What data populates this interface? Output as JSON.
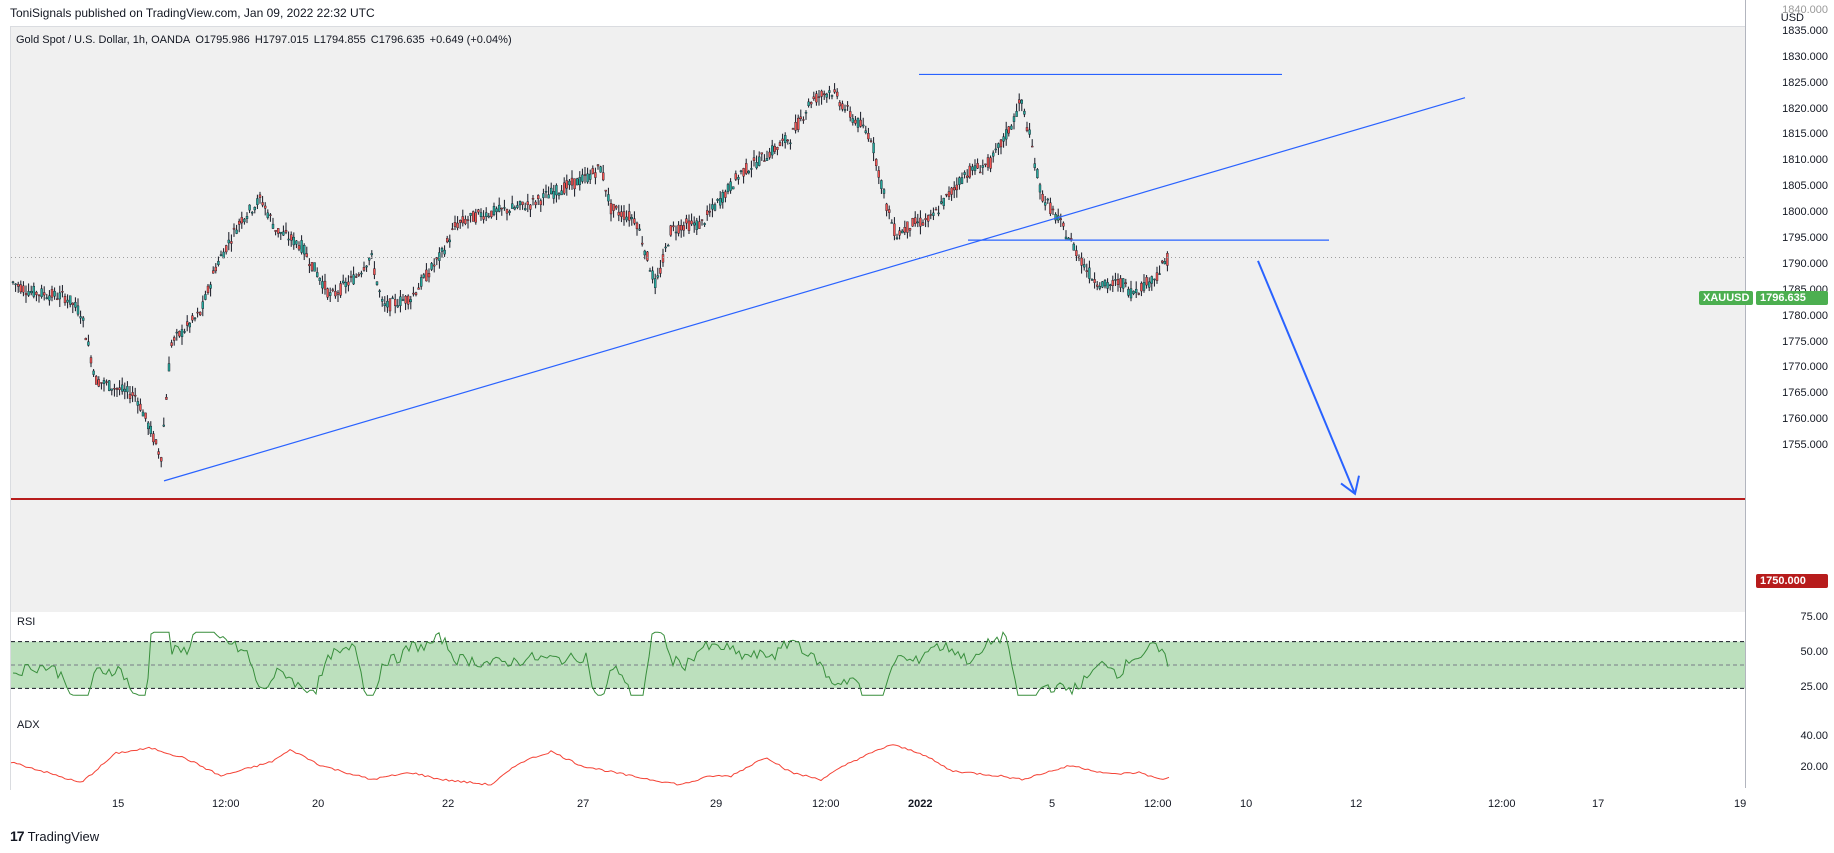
{
  "header": {
    "published_text": "ToniSignals published on TradingView.com, Jan 09, 2022 22:32 UTC"
  },
  "legend": {
    "symbol": "Gold Spot / U.S. Dollar, 1h, OANDA",
    "open": "O1795.986",
    "high": "H1797.015",
    "low": "L1794.855",
    "close": "C1796.635",
    "change": "+0.649 (+0.04%)"
  },
  "price_axis": {
    "currency": "USD",
    "ticks": [
      "1835.000",
      "1830.000",
      "1825.000",
      "1820.000",
      "1815.000",
      "1810.000",
      "1805.000",
      "1800.000",
      "1795.000",
      "1790.000",
      "1785.000",
      "1780.000",
      "1775.000",
      "1770.000",
      "1765.000",
      "1760.000",
      "1755.000"
    ],
    "top_partial": "1840.000"
  },
  "tags": {
    "symbol_tag": "XAUUSD",
    "last_price": "1796.635",
    "target_level": "1750.000"
  },
  "rsi": {
    "label": "RSI",
    "ticks": [
      "75.00",
      "50.00",
      "25.00"
    ]
  },
  "adx": {
    "label": "ADX",
    "ticks": [
      "40.00",
      "20.00"
    ]
  },
  "time_axis": {
    "ticks": [
      "15",
      "12:00",
      "20",
      "22",
      "27",
      "29",
      "12:00",
      "2022",
      "5",
      "12:00",
      "10",
      "12",
      "12:00",
      "17",
      "19"
    ]
  },
  "footer": {
    "brand": "TradingView",
    "logo_glyph": "17"
  },
  "colors": {
    "up": "#26a69a",
    "down": "#ef5350",
    "trendline": "#2962ff",
    "target_line": "#b71c1c",
    "last_price_bg": "#4caf50",
    "rsi_band": "#a5d6a7",
    "rsi_line": "#388e3c",
    "adx_line": "#f44336"
  },
  "chart_data": {
    "type": "candlestick",
    "symbol": "XAUUSD",
    "timeframe": "1h",
    "ylim": [
      1750,
      1840
    ],
    "key_levels": [
      1750,
      1800,
      1832
    ],
    "last_close": 1796.635
  }
}
